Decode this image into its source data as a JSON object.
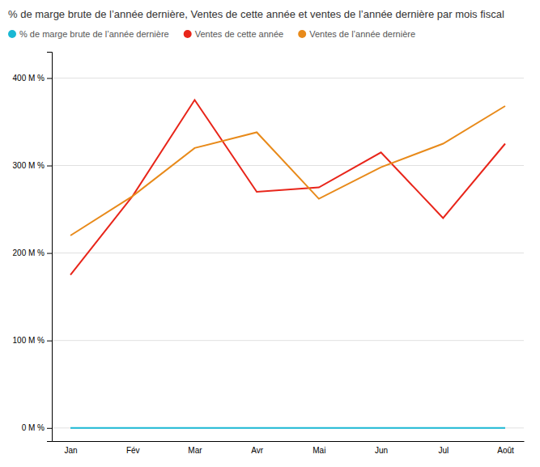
{
  "chart_data": {
    "type": "line",
    "title": "% de marge brute de l’année dernière, Ventes de cette année et ventes de l’année dernière par mois fiscal",
    "categories": [
      "Jan",
      "Fév",
      "Mar",
      "Avr",
      "Mai",
      "Jun",
      "Jul",
      "Août"
    ],
    "series": [
      {
        "name": "% de marge brute de l’année dernière",
        "color": "#1ab8d4",
        "values": [
          0,
          0,
          0,
          0,
          0,
          0,
          0,
          0
        ]
      },
      {
        "name": "Ventes de cette année",
        "color": "#e8251a",
        "values": [
          175,
          265,
          375,
          270,
          275,
          315,
          240,
          325
        ]
      },
      {
        "name": "Ventes de l’année dernière",
        "color": "#e88a1a",
        "values": [
          220,
          265,
          320,
          338,
          262,
          298,
          325,
          368
        ]
      }
    ],
    "ylim": [
      -15,
      430
    ],
    "yticks": [
      {
        "value": 0,
        "label": "0 M %"
      },
      {
        "value": 100,
        "label": "100 M %"
      },
      {
        "value": 200,
        "label": "200 M %"
      },
      {
        "value": 300,
        "label": "300 M %"
      },
      {
        "value": 400,
        "label": "400 M %"
      }
    ],
    "grid": true
  }
}
